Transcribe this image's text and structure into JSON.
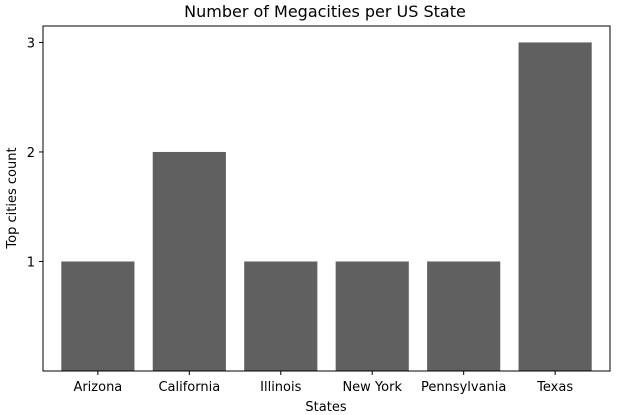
{
  "chart_data": {
    "type": "bar",
    "title": "Number of Megacities per US State",
    "xlabel": "States",
    "ylabel": "Top cities count",
    "categories": [
      "Arizona",
      "California",
      "Illinois",
      "New York",
      "Pennsylvania",
      "Texas"
    ],
    "values": [
      1,
      2,
      1,
      1,
      1,
      3
    ],
    "yticks": [
      "1",
      "2",
      "3"
    ],
    "ylim": [
      0,
      3.15
    ],
    "grid": false,
    "bar_color": "#606060"
  }
}
